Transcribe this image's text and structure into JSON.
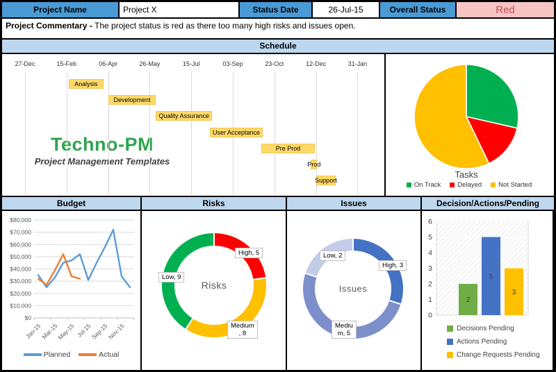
{
  "header": {
    "project_name_label": "Project Name",
    "project_name_value": "Project X",
    "status_date_label": "Status Date",
    "status_date_value": "26-Jul-15",
    "overall_status_label": "Overall Status",
    "overall_status_value": "Red",
    "status_text_color": "#C0504D",
    "status_bg_color": "#F7C4C4",
    "header_bg_color": "#4A9AD5"
  },
  "commentary": {
    "label": "Project Commentary - ",
    "text": "The project status is red as there too many high risks and issues open."
  },
  "sections": {
    "schedule": "Schedule",
    "budget": "Budget",
    "risks": "Risks",
    "issues": "Issues",
    "decisions": "Decision/Actions/Pending"
  },
  "logo": {
    "title": "Techno-PM",
    "subtitle": "Project Management Templates",
    "color": "#2EA44E"
  },
  "chart_data": [
    {
      "id": "gantt",
      "type": "bar",
      "subtype": "gantt-timeline",
      "axis_dates": [
        "27-Dec",
        "15-Feb",
        "06-Apr",
        "26-May",
        "15-Jul",
        "03-Sep",
        "23-Oct",
        "12-Dec",
        "31-Jan"
      ],
      "axis_interval_days": 50,
      "bar_color": "#FFD966",
      "tasks": [
        {
          "label": "Analysis",
          "start": 1.05,
          "end": 1.89
        },
        {
          "label": "Development",
          "start": 2.0,
          "end": 3.15
        },
        {
          "label": "Quality Assurance",
          "start": 3.15,
          "end": 4.5
        },
        {
          "label": "User Acceptance",
          "start": 4.45,
          "end": 5.72
        },
        {
          "label": "Pre Prod",
          "start": 5.68,
          "end": 6.98
        },
        {
          "label": "Prod",
          "start": 6.88,
          "end": 7.03
        },
        {
          "label": "Support",
          "start": 7.0,
          "end": 7.48
        }
      ]
    },
    {
      "id": "tasks",
      "type": "pie",
      "title": "Tasks",
      "labels": [
        "On Track",
        "Delayed",
        "Not Started"
      ],
      "values": [
        2,
        1,
        4
      ],
      "colors": [
        "#00B050",
        "#FF0000",
        "#FFC000"
      ],
      "legend_position": "bottom"
    },
    {
      "id": "budget",
      "type": "line",
      "title": "Budget",
      "n_points": 12,
      "x_tick_labels": [
        "Jan-15",
        "Mar-15",
        "May-15",
        "Jul-15",
        "Sep-15",
        "Nov-15"
      ],
      "y_tick_labels": [
        "$80,000",
        "$70,000",
        "$60,000",
        "$50,000",
        "$40,000",
        "$30,000",
        "$20,000",
        "$10,000",
        "$0"
      ],
      "ylim": [
        0,
        80000
      ],
      "series": [
        {
          "name": "Planned",
          "color": "#5B9BD5",
          "values": [
            35000,
            25000,
            33000,
            45000,
            47000,
            52000,
            31000,
            45000,
            58000,
            72000,
            34000,
            25000
          ]
        },
        {
          "name": "Actual",
          "color": "#ED7D31",
          "values": [
            32000,
            27000,
            39000,
            52000,
            34000,
            32000
          ]
        }
      ],
      "legend_position": "bottom",
      "grid": true
    },
    {
      "id": "risks",
      "type": "pie",
      "donut": true,
      "center_label": "Risks",
      "slices": [
        {
          "label": "High",
          "value": 5,
          "color": "#FF0000",
          "data_label_lines": [
            "High, 5"
          ]
        },
        {
          "label": "Medium",
          "value": 8,
          "color": "#FFC000",
          "data_label_lines": [
            "Medium",
            ", 8"
          ]
        },
        {
          "label": "Low",
          "value": 9,
          "color": "#00B050",
          "data_label_lines": [
            "Low, 9"
          ]
        }
      ]
    },
    {
      "id": "issues",
      "type": "pie",
      "donut": true,
      "center_label": "Issues",
      "slices": [
        {
          "label": "High",
          "value": 3,
          "color": "#4472C4",
          "data_label_lines": [
            "High, 3"
          ]
        },
        {
          "label": "Medium",
          "value": 5,
          "color": "#7C8FCB",
          "data_label_lines": [
            "Mediu",
            "m, 5"
          ]
        },
        {
          "label": "Low",
          "value": 2,
          "color": "#C1CCE8",
          "data_label_lines": [
            "Low, 2"
          ]
        }
      ]
    },
    {
      "id": "decisions",
      "type": "bar",
      "categories": [
        "Decisions Pending",
        "Actions Pending",
        "Change Requests Pending"
      ],
      "values": [
        2,
        5,
        3
      ],
      "value_labels": [
        "2",
        "5",
        "3"
      ],
      "colors": [
        "#70AD47",
        "#4472C4",
        "#FFC000"
      ],
      "ylim": [
        0,
        6
      ],
      "yticks": [
        0,
        1,
        2,
        3,
        4,
        5,
        6
      ],
      "legend_position": "bottom",
      "plot_hatch": true
    }
  ]
}
